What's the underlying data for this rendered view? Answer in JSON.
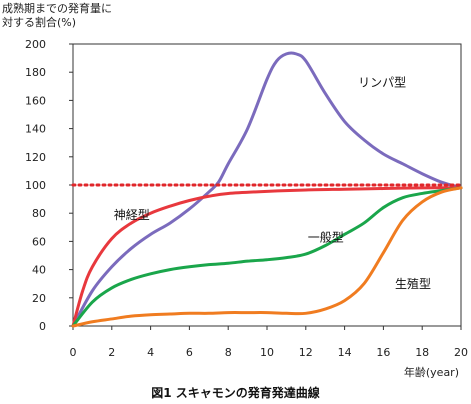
{
  "chart_data": {
    "type": "line",
    "title": "",
    "caption": "図1 スキャモンの発育発達曲線",
    "ylabel_lines": [
      "成熟期までの発育量に",
      "対する割合(%)"
    ],
    "xlabel": "年齢(year)",
    "xlim": [
      0,
      20
    ],
    "ylim": [
      0,
      200
    ],
    "xticks": [
      0,
      2,
      4,
      6,
      8,
      10,
      12,
      14,
      16,
      18,
      20
    ],
    "yticks": [
      0,
      20,
      40,
      60,
      80,
      100,
      120,
      140,
      160,
      180,
      200
    ],
    "reference_line": {
      "y": 100,
      "style": "dotted",
      "color": "#e0262a"
    },
    "series": [
      {
        "name": "リンパ型",
        "color": "#7b6bbd",
        "points": [
          [
            0,
            0
          ],
          [
            1,
            25
          ],
          [
            2,
            42
          ],
          [
            3,
            55
          ],
          [
            4,
            65
          ],
          [
            5,
            73
          ],
          [
            6,
            83
          ],
          [
            7,
            95
          ],
          [
            7.5,
            102
          ],
          [
            8,
            115
          ],
          [
            9,
            140
          ],
          [
            10,
            175
          ],
          [
            10.5,
            188
          ],
          [
            11,
            193
          ],
          [
            11.5,
            193
          ],
          [
            12,
            188
          ],
          [
            13,
            165
          ],
          [
            14,
            145
          ],
          [
            15,
            132
          ],
          [
            16,
            122
          ],
          [
            17,
            115
          ],
          [
            18,
            108
          ],
          [
            19,
            102
          ],
          [
            20,
            98
          ]
        ]
      },
      {
        "name": "神経型",
        "color": "#e8383d",
        "points": [
          [
            0,
            0
          ],
          [
            0.5,
            25
          ],
          [
            1,
            42
          ],
          [
            2,
            62
          ],
          [
            3,
            73
          ],
          [
            4,
            80
          ],
          [
            5,
            85
          ],
          [
            6,
            89
          ],
          [
            7,
            92
          ],
          [
            8,
            94
          ],
          [
            10,
            95.5
          ],
          [
            12,
            96.5
          ],
          [
            14,
            97
          ],
          [
            16,
            97.5
          ],
          [
            18,
            98
          ],
          [
            20,
            98
          ]
        ]
      },
      {
        "name": "一般型",
        "color": "#1aa64b",
        "points": [
          [
            0,
            0
          ],
          [
            1,
            17
          ],
          [
            2,
            27
          ],
          [
            3,
            33
          ],
          [
            4,
            37
          ],
          [
            5,
            40
          ],
          [
            6,
            42
          ],
          [
            7,
            43.5
          ],
          [
            8,
            44.5
          ],
          [
            9,
            46
          ],
          [
            10,
            47
          ],
          [
            11,
            48.5
          ],
          [
            12,
            51
          ],
          [
            13,
            57
          ],
          [
            14,
            65
          ],
          [
            15,
            73
          ],
          [
            16,
            84
          ],
          [
            17,
            91
          ],
          [
            18,
            94
          ],
          [
            19,
            96
          ],
          [
            20,
            98
          ]
        ]
      },
      {
        "name": "生殖型",
        "color": "#f07c20",
        "points": [
          [
            0,
            0
          ],
          [
            1,
            3
          ],
          [
            2,
            5
          ],
          [
            3,
            7
          ],
          [
            4,
            8
          ],
          [
            5,
            8.5
          ],
          [
            6,
            9
          ],
          [
            7,
            9
          ],
          [
            8,
            9.5
          ],
          [
            9,
            9.5
          ],
          [
            10,
            9.5
          ],
          [
            11,
            9
          ],
          [
            12,
            9
          ],
          [
            13,
            12
          ],
          [
            14,
            18
          ],
          [
            15,
            30
          ],
          [
            16,
            52
          ],
          [
            17,
            75
          ],
          [
            18,
            88
          ],
          [
            19,
            95
          ],
          [
            20,
            98
          ]
        ]
      }
    ],
    "series_label_positions": {
      "リンパ型": [
        14.7,
        170
      ],
      "神経型": [
        2.1,
        76
      ],
      "一般型": [
        12.1,
        60
      ],
      "生殖型": [
        16.6,
        27
      ]
    }
  }
}
